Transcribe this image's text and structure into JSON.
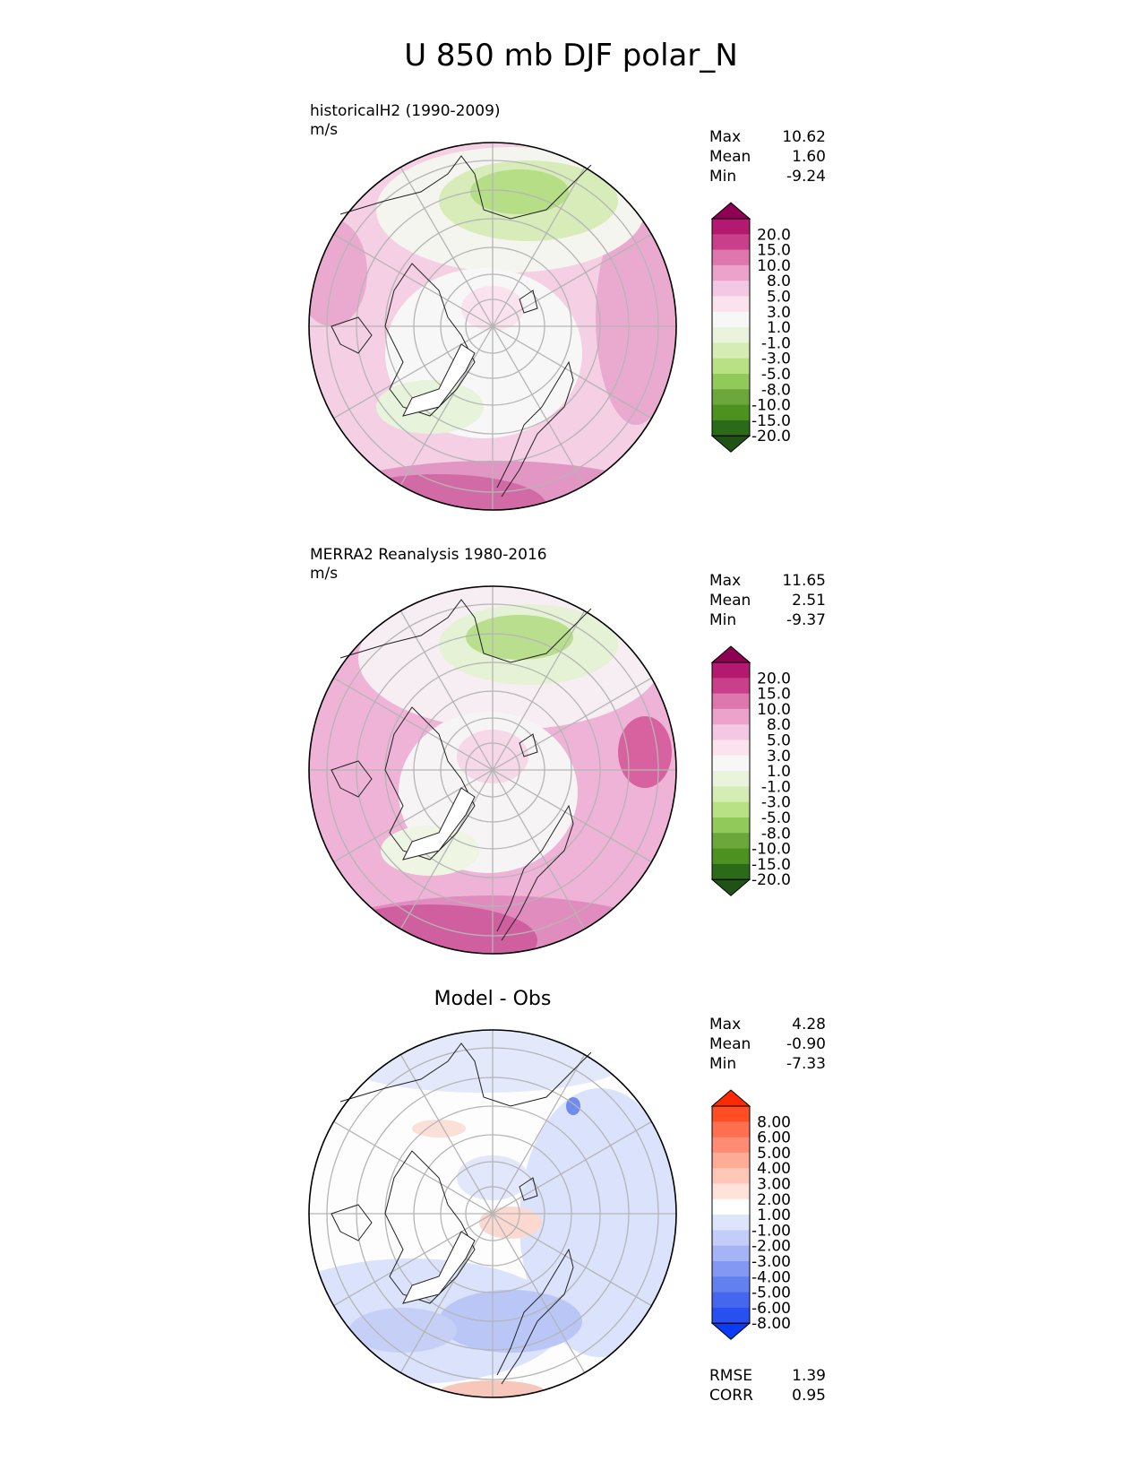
{
  "title": "U 850 mb DJF polar_N",
  "panels": [
    {
      "title_line1": "historicalH2 (1990-2009)",
      "title_line2": "m/s",
      "stats": {
        "max_label": "Max",
        "max": "10.62",
        "mean_label": "Mean",
        "mean": "1.60",
        "min_label": "Min",
        "min": "-9.24"
      },
      "colorbar_labels": [
        "20.0",
        "15.0",
        "10.0",
        "8.0",
        "5.0",
        "3.0",
        "1.0",
        "-1.0",
        "-3.0",
        "-5.0",
        "-8.0",
        "-10.0",
        "-15.0",
        "-20.0"
      ],
      "colorbar_colors": [
        "#8e0152",
        "#b3196e",
        "#c93f89",
        "#de77ae",
        "#eba3cc",
        "#f4c8e2",
        "#fae3ef",
        "#f7f7f7",
        "#eaf4dc",
        "#d5ecb5",
        "#b8e186",
        "#92c95b",
        "#6ba73a",
        "#4d9221",
        "#2b6a18",
        "#1f5316"
      ]
    },
    {
      "title_line1": "MERRA2 Reanalysis 1980-2016",
      "title_line2": "m/s",
      "stats": {
        "max_label": "Max",
        "max": "11.65",
        "mean_label": "Mean",
        "mean": "2.51",
        "min_label": "Min",
        "min": "-9.37"
      },
      "colorbar_labels": [
        "20.0",
        "15.0",
        "10.0",
        "8.0",
        "5.0",
        "3.0",
        "1.0",
        "-1.0",
        "-3.0",
        "-5.0",
        "-8.0",
        "-10.0",
        "-15.0",
        "-20.0"
      ],
      "colorbar_colors": [
        "#8e0152",
        "#b3196e",
        "#c93f89",
        "#de77ae",
        "#eba3cc",
        "#f4c8e2",
        "#fae3ef",
        "#f7f7f7",
        "#eaf4dc",
        "#d5ecb5",
        "#b8e186",
        "#92c95b",
        "#6ba73a",
        "#4d9221",
        "#2b6a18",
        "#1f5316"
      ]
    },
    {
      "title": "Model - Obs",
      "stats": {
        "max_label": "Max",
        "max": "4.28",
        "mean_label": "Mean",
        "mean": "-0.90",
        "min_label": "Min",
        "min": "-7.33"
      },
      "colorbar_labels": [
        "8.00",
        "6.00",
        "5.00",
        "4.00",
        "3.00",
        "2.00",
        "1.00",
        "-1.00",
        "-2.00",
        "-3.00",
        "-4.00",
        "-5.00",
        "-6.00",
        "-8.00"
      ],
      "colorbar_colors": [
        "#ff2a00",
        "#ff4d26",
        "#ff6e4f",
        "#ff8c73",
        "#ffab96",
        "#ffc7b8",
        "#ffe3da",
        "#ffffff",
        "#dde4fb",
        "#c2cdf8",
        "#a5b4f5",
        "#8398f2",
        "#6380ef",
        "#4567ee",
        "#2850f0",
        "#0a3bf5"
      ],
      "rmse_label": "RMSE",
      "rmse": "1.39",
      "corr_label": "CORR",
      "corr": "0.95"
    }
  ]
}
